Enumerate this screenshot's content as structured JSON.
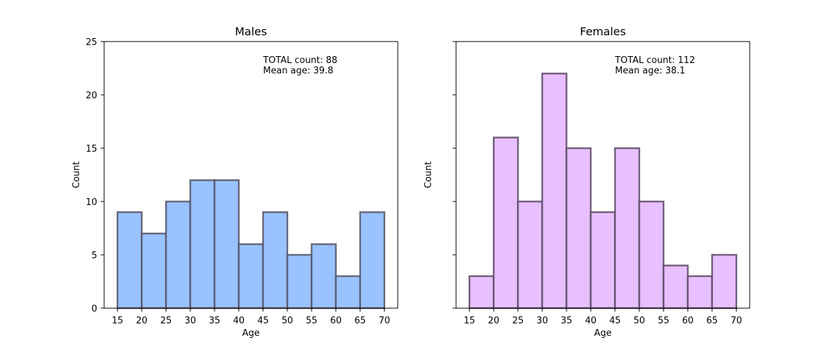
{
  "chart_data": [
    {
      "type": "bar",
      "title": "Males",
      "xlabel": "Age",
      "ylabel": "Count",
      "bin_edges": [
        15,
        20,
        25,
        30,
        35,
        40,
        45,
        50,
        55,
        60,
        65,
        70
      ],
      "values": [
        9,
        7,
        10,
        12,
        12,
        6,
        9,
        5,
        6,
        3,
        9
      ],
      "xticks": [
        15,
        20,
        25,
        30,
        35,
        40,
        45,
        50,
        55,
        60,
        65,
        70
      ],
      "yticks": [
        0,
        5,
        10,
        15,
        20,
        25
      ],
      "ylim": [
        0,
        25
      ],
      "xlim": [
        12.25,
        72.75
      ],
      "annotation_lines": [
        "TOTAL count: 88",
        "Mean age: 39.8"
      ],
      "fill_color": "#99c2ff",
      "edge_color": "#555566",
      "grid": false
    },
    {
      "type": "bar",
      "title": "Females",
      "xlabel": "Age",
      "ylabel": "Count",
      "bin_edges": [
        15,
        20,
        25,
        30,
        35,
        40,
        45,
        50,
        55,
        60,
        65,
        70
      ],
      "values": [
        3,
        16,
        10,
        22,
        15,
        9,
        15,
        10,
        4,
        3,
        5
      ],
      "xticks": [
        15,
        20,
        25,
        30,
        35,
        40,
        45,
        50,
        55,
        60,
        65,
        70
      ],
      "yticks": [
        0,
        5,
        10,
        15,
        20,
        25
      ],
      "ylim": [
        0,
        25
      ],
      "xlim": [
        12.25,
        72.75
      ],
      "annotation_lines": [
        "TOTAL count: 112",
        "Mean age: 38.1"
      ],
      "fill_color": "#e8bfff",
      "edge_color": "#5a4a66",
      "grid": false
    }
  ]
}
